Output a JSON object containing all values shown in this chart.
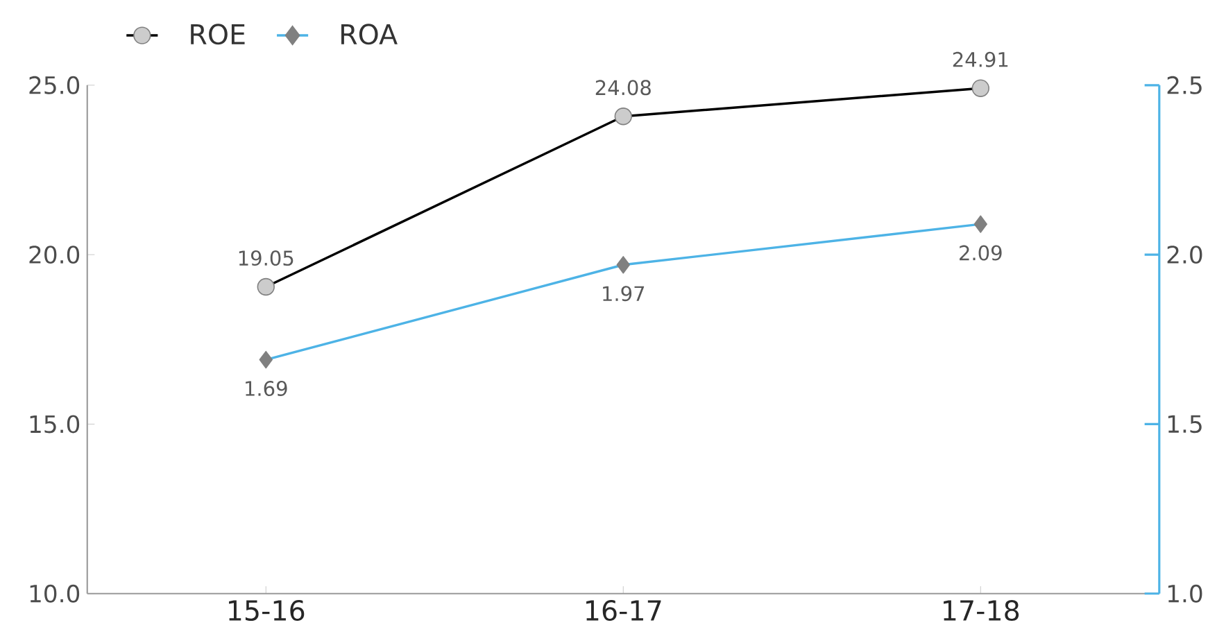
{
  "chart_data": {
    "type": "line",
    "categories": [
      "15-16",
      "16-17",
      "17-18"
    ],
    "series": [
      {
        "name": "ROE",
        "color": "#000000",
        "values": [
          19.05,
          24.08,
          24.91
        ],
        "marker": "circle"
      },
      {
        "name": "ROA",
        "color": "#4db3e6",
        "values": [
          1.69,
          1.97,
          2.09
        ],
        "marker": "diamond",
        "axis": "y2"
      }
    ],
    "ylim": [
      10,
      25
    ],
    "yticks": [
      {
        "value": 10,
        "label": "10.0"
      },
      {
        "value": 15,
        "label": "15.0"
      },
      {
        "value": 20,
        "label": "20.0"
      },
      {
        "value": 25,
        "label": "25.0"
      }
    ],
    "y2lim": [
      1,
      2.5
    ],
    "y2ticks": [
      {
        "value": 1,
        "label": "1.0"
      },
      {
        "value": 1.5,
        "label": "1.5"
      },
      {
        "value": 2,
        "label": "2.0"
      },
      {
        "value": 2.5,
        "label": "2.5"
      }
    ],
    "data_labels": true,
    "legend": "top left",
    "grid": false,
    "line_style": "solid"
  }
}
